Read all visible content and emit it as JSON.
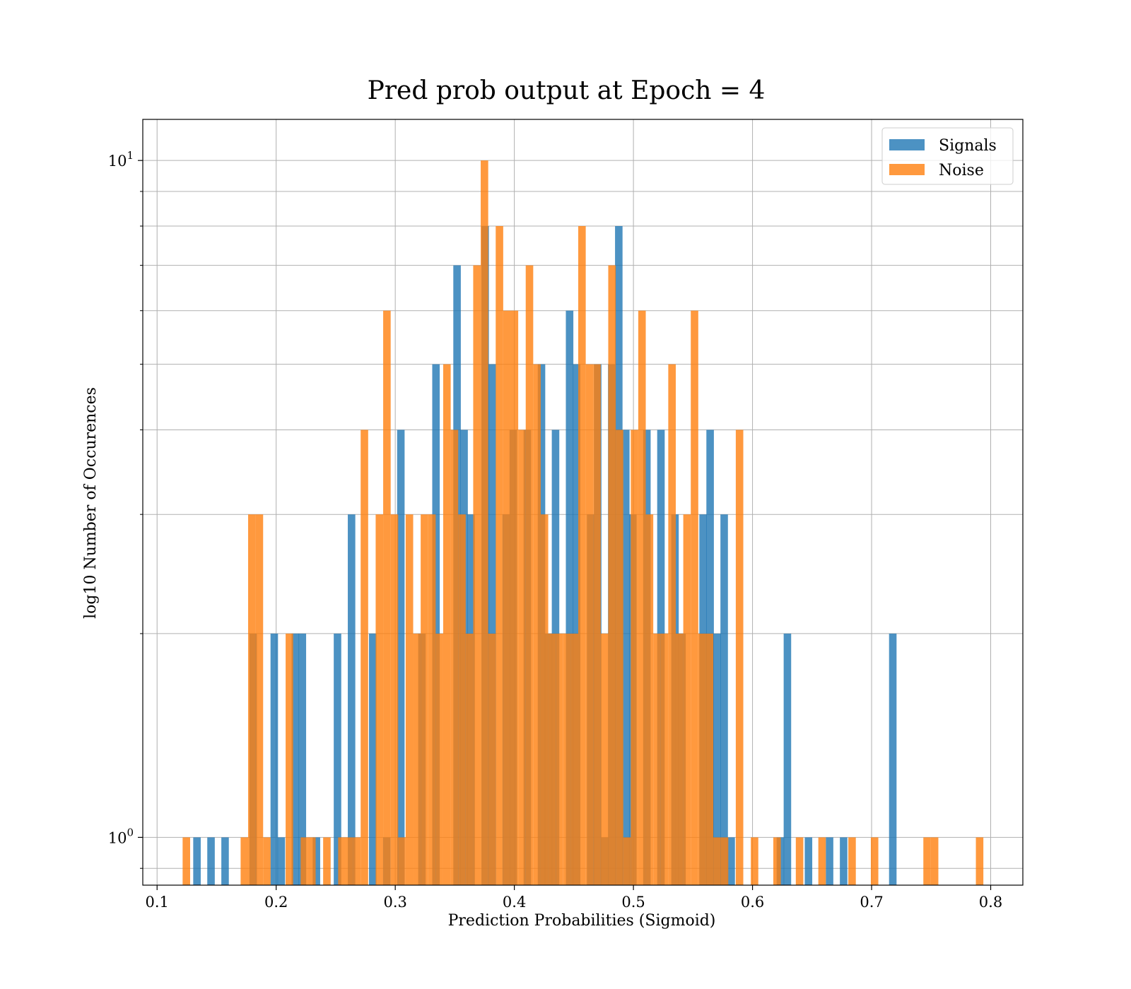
{
  "chart_data": {
    "type": "bar",
    "title": "Pred prob output at Epoch = 4",
    "xlabel": "Prediction Probabilities (Sigmoid)",
    "ylabel": "log10 Number of Occurences",
    "xlim": [
      0.088,
      0.827
    ],
    "ylim": [
      0.85,
      11.5
    ],
    "yscale": "log",
    "grid": true,
    "legend_position": "top-right",
    "x_ticks": [
      0.1,
      0.2,
      0.3,
      0.4,
      0.5,
      0.6,
      0.7,
      0.8
    ],
    "x_tick_labels": [
      "0.1",
      "0.2",
      "0.3",
      "0.4",
      "0.5",
      "0.6",
      "0.7",
      "0.8"
    ],
    "y_major_ticks": [
      {
        "value": 1,
        "base": "10",
        "exp": "0"
      },
      {
        "value": 10,
        "base": "10",
        "exp": "1"
      }
    ],
    "y_minor_ticks": [
      2,
      3,
      4,
      5,
      6,
      7,
      8,
      9
    ],
    "bin_width": 0.0063,
    "series": [
      {
        "name": "Signals",
        "color": "#1f77b4",
        "opacity": 0.8,
        "bins": [
          [
            0.1335,
            1
          ],
          [
            0.1453,
            1
          ],
          [
            0.1571,
            1
          ],
          [
            0.1807,
            2
          ],
          [
            0.1984,
            2
          ],
          [
            0.2043,
            1
          ],
          [
            0.2161,
            2
          ],
          [
            0.222,
            2
          ],
          [
            0.2338,
            1
          ],
          [
            0.2515,
            2
          ],
          [
            0.2633,
            3
          ],
          [
            0.2811,
            2
          ],
          [
            0.2929,
            1
          ],
          [
            0.3047,
            4
          ],
          [
            0.3224,
            2
          ],
          [
            0.3342,
            5
          ],
          [
            0.3519,
            7
          ],
          [
            0.3578,
            4
          ],
          [
            0.3637,
            3
          ],
          [
            0.3755,
            8
          ],
          [
            0.3814,
            5
          ],
          [
            0.3932,
            3
          ],
          [
            0.3991,
            4
          ],
          [
            0.4109,
            4
          ],
          [
            0.4228,
            5
          ],
          [
            0.4287,
            2
          ],
          [
            0.4346,
            4
          ],
          [
            0.4464,
            6
          ],
          [
            0.4523,
            5
          ],
          [
            0.4641,
            3
          ],
          [
            0.47,
            5
          ],
          [
            0.4759,
            1
          ],
          [
            0.4818,
            5
          ],
          [
            0.4877,
            8
          ],
          [
            0.4936,
            4
          ],
          [
            0.4995,
            3
          ],
          [
            0.5113,
            4
          ],
          [
            0.5231,
            4
          ],
          [
            0.5349,
            3
          ],
          [
            0.5408,
            2
          ],
          [
            0.5585,
            3
          ],
          [
            0.5644,
            4
          ],
          [
            0.5703,
            2
          ],
          [
            0.5762,
            3
          ],
          [
            0.5821,
            1
          ],
          [
            0.6234,
            1
          ],
          [
            0.6293,
            2
          ],
          [
            0.647,
            1
          ],
          [
            0.6647,
            1
          ],
          [
            0.6765,
            1
          ],
          [
            0.7178,
            2
          ]
        ]
      },
      {
        "name": "Noise",
        "color": "#ff7f0e",
        "opacity": 0.8,
        "bins": [
          [
            0.1246,
            1
          ],
          [
            0.1733,
            1
          ],
          [
            0.1796,
            3
          ],
          [
            0.1859,
            3
          ],
          [
            0.1922,
            1
          ],
          [
            0.2111,
            2
          ],
          [
            0.2237,
            1
          ],
          [
            0.23,
            1
          ],
          [
            0.2426,
            1
          ],
          [
            0.2552,
            1
          ],
          [
            0.2615,
            1
          ],
          [
            0.2678,
            1
          ],
          [
            0.2741,
            4
          ],
          [
            0.2867,
            3
          ],
          [
            0.293,
            6
          ],
          [
            0.2993,
            3
          ],
          [
            0.3056,
            1
          ],
          [
            0.3119,
            3
          ],
          [
            0.3182,
            2
          ],
          [
            0.3245,
            3
          ],
          [
            0.3308,
            3
          ],
          [
            0.3371,
            2
          ],
          [
            0.3434,
            5
          ],
          [
            0.3497,
            4
          ],
          [
            0.356,
            3
          ],
          [
            0.3623,
            2
          ],
          [
            0.3686,
            7
          ],
          [
            0.3749,
            10
          ],
          [
            0.3812,
            2
          ],
          [
            0.3875,
            8
          ],
          [
            0.3938,
            6
          ],
          [
            0.4001,
            6
          ],
          [
            0.4064,
            4
          ],
          [
            0.4127,
            7
          ],
          [
            0.419,
            5
          ],
          [
            0.4253,
            3
          ],
          [
            0.4316,
            2
          ],
          [
            0.4379,
            2
          ],
          [
            0.4442,
            2
          ],
          [
            0.4505,
            2
          ],
          [
            0.4568,
            8
          ],
          [
            0.4631,
            5
          ],
          [
            0.4694,
            5
          ],
          [
            0.4757,
            2
          ],
          [
            0.482,
            7
          ],
          [
            0.4883,
            4
          ],
          [
            0.4946,
            1
          ],
          [
            0.5009,
            4
          ],
          [
            0.5072,
            6
          ],
          [
            0.5135,
            3
          ],
          [
            0.5198,
            2
          ],
          [
            0.5261,
            2
          ],
          [
            0.5324,
            5
          ],
          [
            0.5387,
            2
          ],
          [
            0.545,
            3
          ],
          [
            0.5513,
            6
          ],
          [
            0.5576,
            2
          ],
          [
            0.5639,
            2
          ],
          [
            0.5702,
            1
          ],
          [
            0.5765,
            1
          ],
          [
            0.5891,
            4
          ],
          [
            0.6017,
            1
          ],
          [
            0.6206,
            1
          ],
          [
            0.6395,
            1
          ],
          [
            0.6584,
            1
          ],
          [
            0.6836,
            1
          ],
          [
            0.7025,
            1
          ],
          [
            0.7466,
            1
          ],
          [
            0.7529,
            1
          ],
          [
            0.7907,
            1
          ]
        ]
      }
    ]
  }
}
